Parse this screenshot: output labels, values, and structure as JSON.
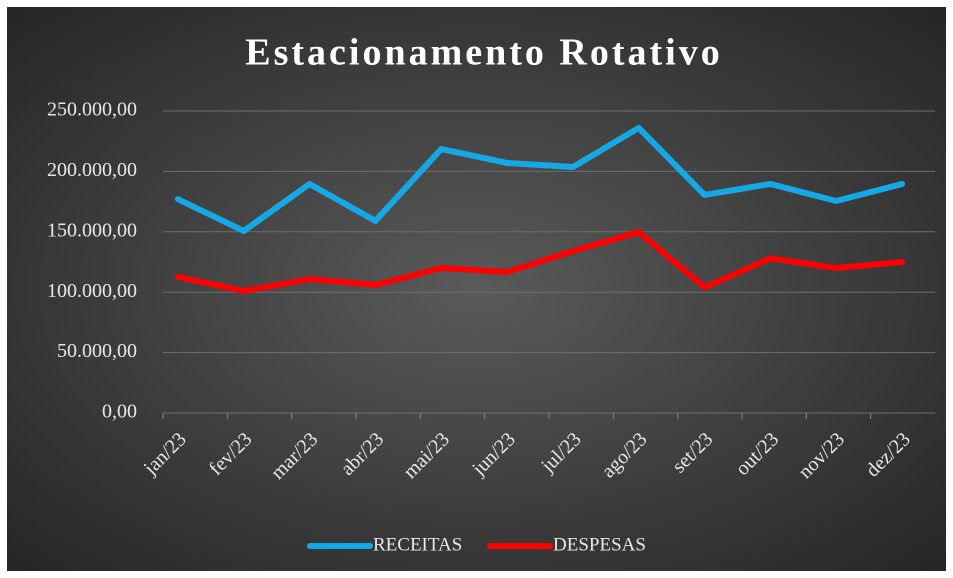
{
  "chart_data": {
    "type": "line",
    "title": "Estacionamento Rotativo",
    "categories": [
      "jan/23",
      "fev/23",
      "mar/23",
      "abr/23",
      "mai/23",
      "jun/23",
      "jul/23",
      "ago/23",
      "set/23",
      "out/23",
      "nov/23",
      "dez/23"
    ],
    "series": [
      {
        "name": "RECEITAS",
        "color": "#14a9e6",
        "values": [
          177000,
          150700,
          189600,
          159000,
          218500,
          207000,
          203600,
          236000,
          180500,
          189600,
          175500,
          189600
        ]
      },
      {
        "name": "DESPESAS",
        "color": "#ff0000",
        "values": [
          112600,
          101000,
          110900,
          106000,
          120000,
          116700,
          134000,
          149800,
          104000,
          128000,
          120000,
          125000
        ]
      }
    ],
    "ylim": [
      0,
      250000
    ],
    "yticks": [
      {
        "value": 0,
        "label": "0,00"
      },
      {
        "value": 50000,
        "label": "50.000,00"
      },
      {
        "value": 100000,
        "label": "100.000,00"
      },
      {
        "value": 150000,
        "label": "150.000,00"
      },
      {
        "value": 200000,
        "label": "200.000,00"
      },
      {
        "value": 250000,
        "label": "250.000,00"
      }
    ],
    "grid": true,
    "legend": "bottom"
  }
}
